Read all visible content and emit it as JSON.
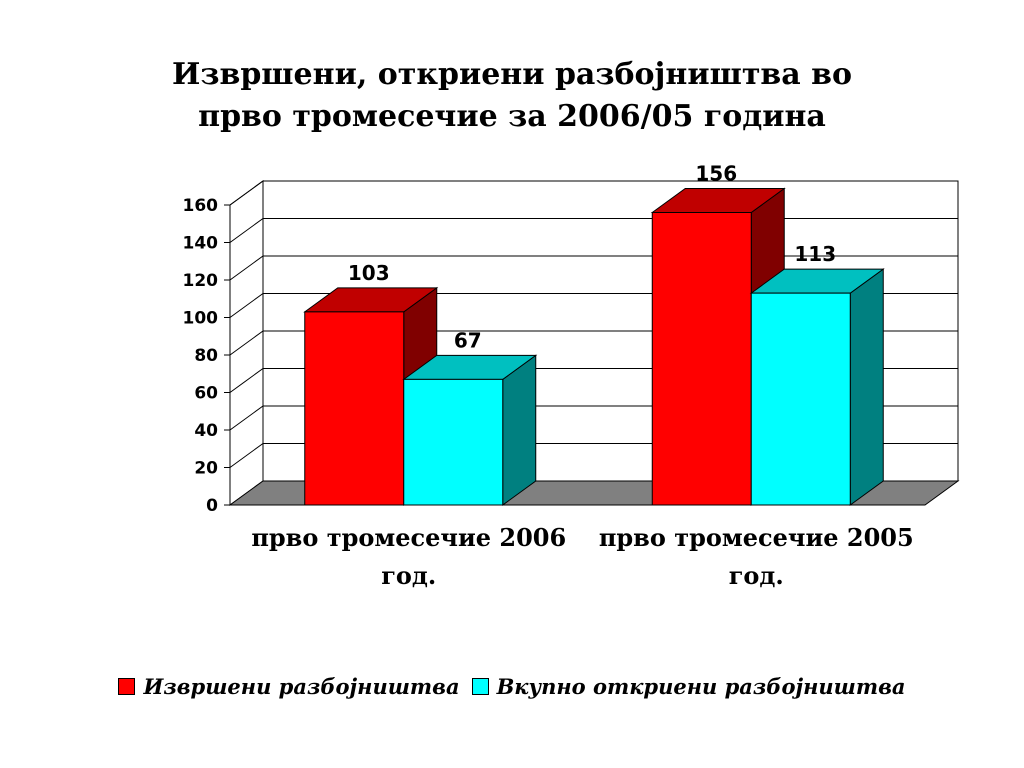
{
  "chart_data": {
    "type": "bar",
    "title_lines": [
      "Извршени, откриени разбојништва во",
      "прво тромесечие за 2006/05 година"
    ],
    "categories": [
      [
        "прво тромесечие 2006",
        "год."
      ],
      [
        "прво тромесечие 2005",
        "год."
      ]
    ],
    "series": [
      {
        "name": "Извршени разбојништва",
        "values": [
          103,
          156
        ],
        "color": "#ff0000",
        "side_color": "#800000",
        "top_color": "#c00000"
      },
      {
        "name": "Вкупно откриени разбојништва",
        "values": [
          67,
          113
        ],
        "color": "#00ffff",
        "side_color": "#008080",
        "top_color": "#00c0c0"
      }
    ],
    "value_labels": [
      [
        "103",
        "67"
      ],
      [
        "156",
        "113"
      ]
    ],
    "yticks": [
      "0",
      "20",
      "40",
      "60",
      "80",
      "100",
      "120",
      "140",
      "160"
    ],
    "ylim": [
      0,
      160
    ],
    "grid": true,
    "floor_color": "#808080",
    "legend_position": "bottom"
  }
}
